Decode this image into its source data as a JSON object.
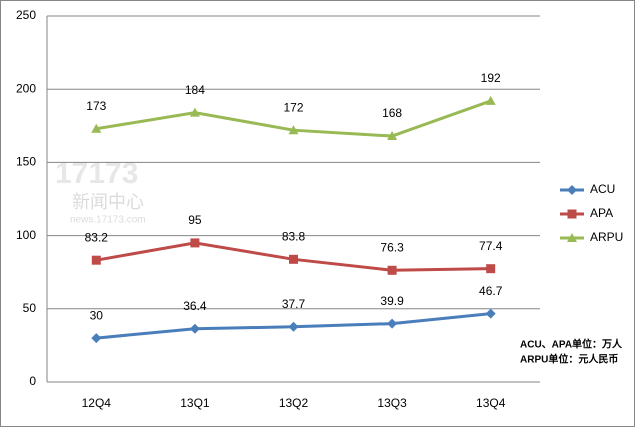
{
  "chart_data": {
    "type": "line",
    "categories": [
      "12Q4",
      "13Q1",
      "13Q2",
      "13Q3",
      "13Q4"
    ],
    "series": [
      {
        "name": "ACU",
        "color": "#4a7ebb",
        "marker": "diamond",
        "values": [
          30,
          36.4,
          37.7,
          39.9,
          46.7
        ]
      },
      {
        "name": "APA",
        "color": "#be4b48",
        "marker": "square",
        "values": [
          83.2,
          95,
          83.8,
          76.3,
          77.4
        ]
      },
      {
        "name": "ARPU",
        "color": "#98b954",
        "marker": "triangle",
        "values": [
          173,
          184,
          172,
          168,
          192
        ]
      }
    ],
    "ylim": [
      0,
      250
    ],
    "yticks": [
      0,
      50,
      100,
      150,
      200,
      250
    ],
    "grid": true,
    "legend": "right",
    "annotations": [
      "ACU、APA单位：万人",
      "ARPU单位：元人民币"
    ],
    "watermark": [
      "17173",
      "新闻中心",
      "news.17173.com"
    ]
  }
}
